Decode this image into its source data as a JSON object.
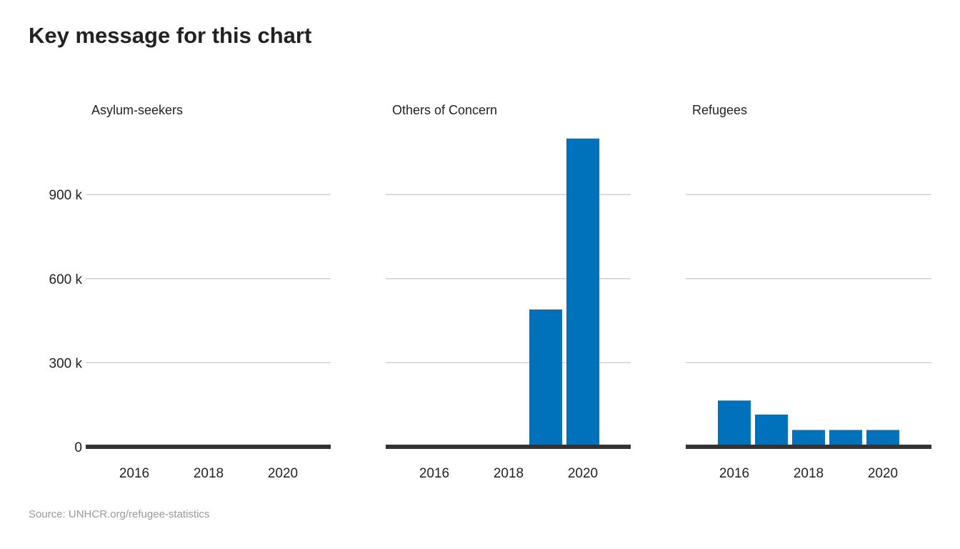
{
  "title": "Key message for this chart",
  "source": "Source: UNHCR.org/refugee-statistics",
  "colors": {
    "bar": "#0072bc",
    "grid": "#cccccc",
    "baseline": "#333333",
    "text": "#222222"
  },
  "chart_data": {
    "type": "bar",
    "layout": "small-multiples",
    "x": [
      2016,
      2017,
      2018,
      2019,
      2020
    ],
    "x_ticks": [
      "2016",
      "2018",
      "2020"
    ],
    "y_ticks": [
      0,
      300000,
      600000,
      900000
    ],
    "y_tick_labels": [
      "0",
      "300 k",
      "600 k",
      "900 k"
    ],
    "ylim": [
      0,
      1150000
    ],
    "grid": true,
    "series": [
      {
        "name": "Asylum-seekers",
        "values": [
          0,
          0,
          0,
          0,
          0
        ]
      },
      {
        "name": "Others of Concern",
        "values": [
          0,
          0,
          0,
          490000,
          1100000
        ]
      },
      {
        "name": "Refugees",
        "values": [
          165000,
          115000,
          60000,
          60000,
          60000
        ]
      }
    ]
  }
}
